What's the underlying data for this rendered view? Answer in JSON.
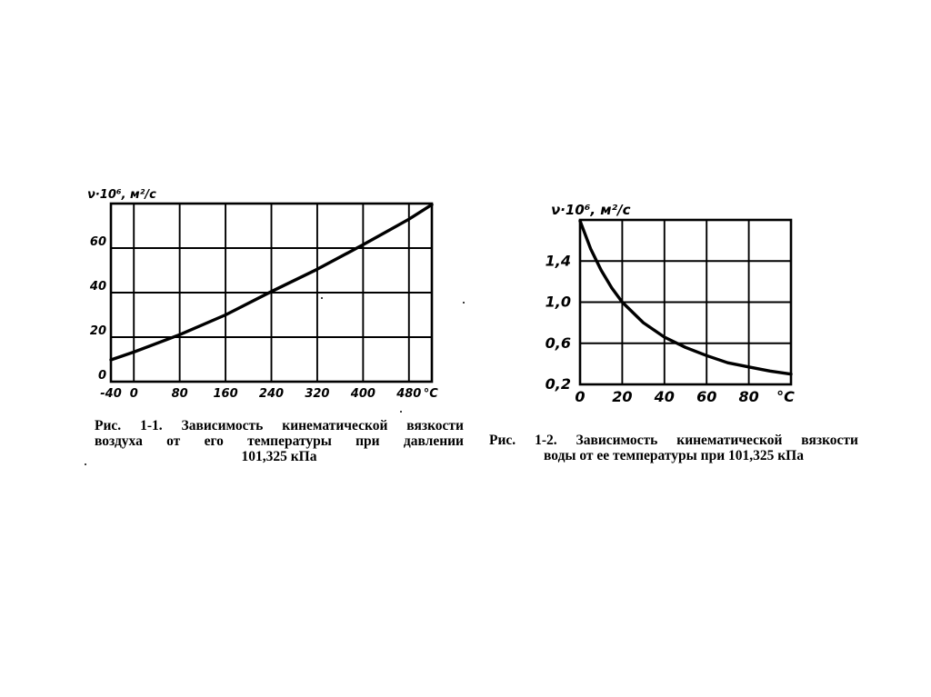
{
  "charts": [
    {
      "ylabel": "ν·10⁶, м²/с",
      "xunit": "°C",
      "x_ticks": [
        "-40",
        "0",
        "80",
        "160",
        "240",
        "320",
        "400",
        "480"
      ],
      "y_ticks": [
        "0",
        "20",
        "40",
        "60"
      ],
      "caption": [
        "Рис. 1-1. Зависимость кинематической вязкости",
        "воздуха от его температуры при давлении",
        "101,325 кПа"
      ]
    },
    {
      "ylabel": "ν·10⁶, м²/с",
      "xunit": "°C",
      "x_ticks": [
        "0",
        "20",
        "40",
        "60",
        "80"
      ],
      "y_ticks": [
        "0,2",
        "0,6",
        "1,0",
        "1,4"
      ],
      "caption": [
        "Рис. 1-2. Зависимость кинематической вязкости",
        "воды от ее температуры при 101,325 кПа"
      ]
    }
  ],
  "chart_data": [
    {
      "type": "line",
      "ylabel": "ν·10⁶, м²/с",
      "xunit": "°C",
      "xlim": [
        -40,
        520
      ],
      "ylim": [
        0,
        80
      ],
      "x_ticks": [
        -40,
        0,
        80,
        160,
        240,
        320,
        400,
        480
      ],
      "y_ticks": [
        0,
        20,
        40,
        60
      ],
      "grid": true,
      "series": [
        {
          "x": [
            -40,
            0,
            80,
            160,
            240,
            320,
            400,
            480,
            520
          ],
          "y": [
            9.8,
            13.3,
            21.1,
            30.0,
            40.5,
            50.5,
            61.5,
            73.0,
            79.5
          ]
        }
      ]
    },
    {
      "type": "line",
      "ylabel": "ν·10⁶, м²/с",
      "xunit": "°C",
      "xlim": [
        0,
        100
      ],
      "ylim": [
        0.2,
        1.8
      ],
      "x_ticks": [
        0,
        20,
        40,
        60,
        80
      ],
      "y_ticks": [
        0.2,
        0.6,
        1.0,
        1.4
      ],
      "grid": true,
      "series": [
        {
          "x": [
            0,
            5,
            10,
            15,
            20,
            30,
            40,
            50,
            60,
            70,
            80,
            90,
            100
          ],
          "y": [
            1.79,
            1.52,
            1.31,
            1.14,
            1.0,
            0.8,
            0.66,
            0.56,
            0.48,
            0.41,
            0.37,
            0.33,
            0.3
          ]
        }
      ]
    }
  ]
}
